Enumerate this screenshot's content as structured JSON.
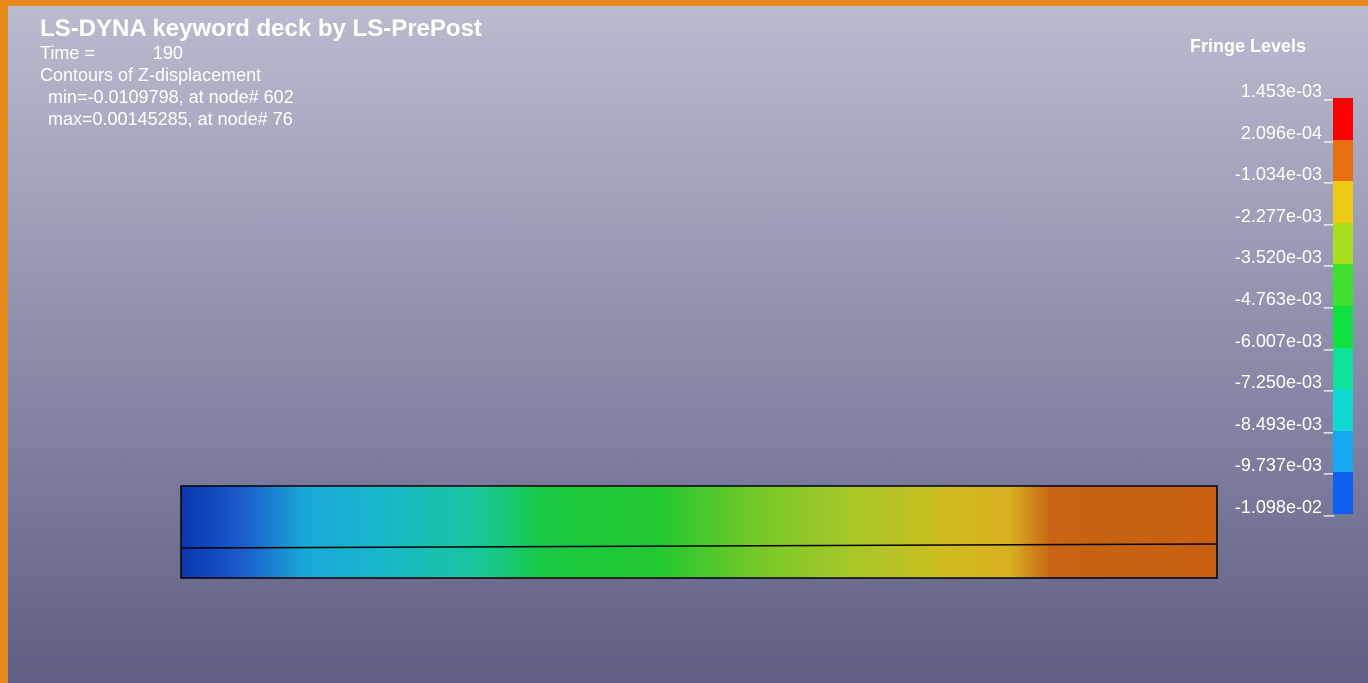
{
  "header": {
    "title": "LS-DYNA keyword deck by LS-PrePost",
    "time_label": "Time =",
    "time_value": "190",
    "contour": "Contours of Z-displacement",
    "min": "min=-0.0109798, at node# 602",
    "max": "max=0.00145285, at node# 76"
  },
  "legend": {
    "title": "Fringe Levels",
    "levels": [
      "1.453e-03",
      "2.096e-04",
      "-1.034e-03",
      "-2.277e-03",
      "-3.520e-03",
      "-4.763e-03",
      "-6.007e-03",
      "-7.250e-03",
      "-8.493e-03",
      "-9.737e-03",
      "-1.098e-02"
    ],
    "colors": [
      "#ff0000",
      "#e87010",
      "#f0c818",
      "#a8e020",
      "#40e030",
      "#10e040",
      "#10e098",
      "#10d8d0",
      "#18a8f0",
      "#1060f0",
      "#0018e8"
    ]
  },
  "model": {
    "gradient_colors": [
      "#0a3ab8",
      "#1ea8d8",
      "#18c8b0",
      "#18c840",
      "#20c830",
      "#80c828",
      "#c8c020",
      "#d8b420",
      "#c86410",
      "#c86010"
    ]
  },
  "colors": {
    "frame": "#e8891c",
    "text": "#ffffff"
  }
}
